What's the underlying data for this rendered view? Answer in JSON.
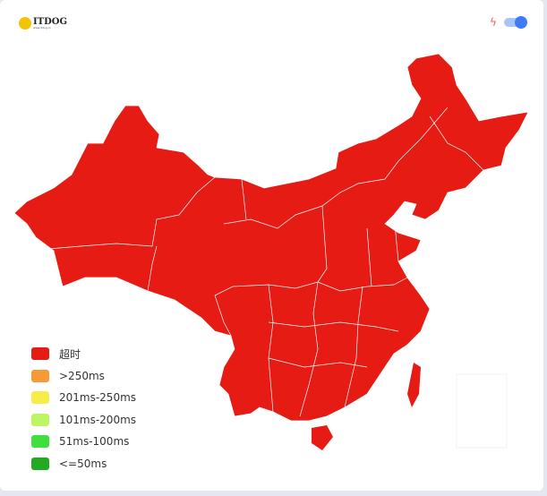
{
  "logo": {
    "text": "ITDOG",
    "sub": "www.itdog.cn"
  },
  "header": {
    "bolt_icon": "lightning-icon",
    "toggle_on": true
  },
  "map": {
    "region": "China",
    "fill_color": "#e61b14"
  },
  "legend": [
    {
      "label": "超时",
      "color": "#e61b14"
    },
    {
      "label": ">250ms",
      "color": "#f59a36"
    },
    {
      "label": "201ms-250ms",
      "color": "#f6ec4a"
    },
    {
      "label": "101ms-200ms",
      "color": "#bef565"
    },
    {
      "label": "51ms-100ms",
      "color": "#3edf3e"
    },
    {
      "label": "<=50ms",
      "color": "#22aa22"
    }
  ]
}
